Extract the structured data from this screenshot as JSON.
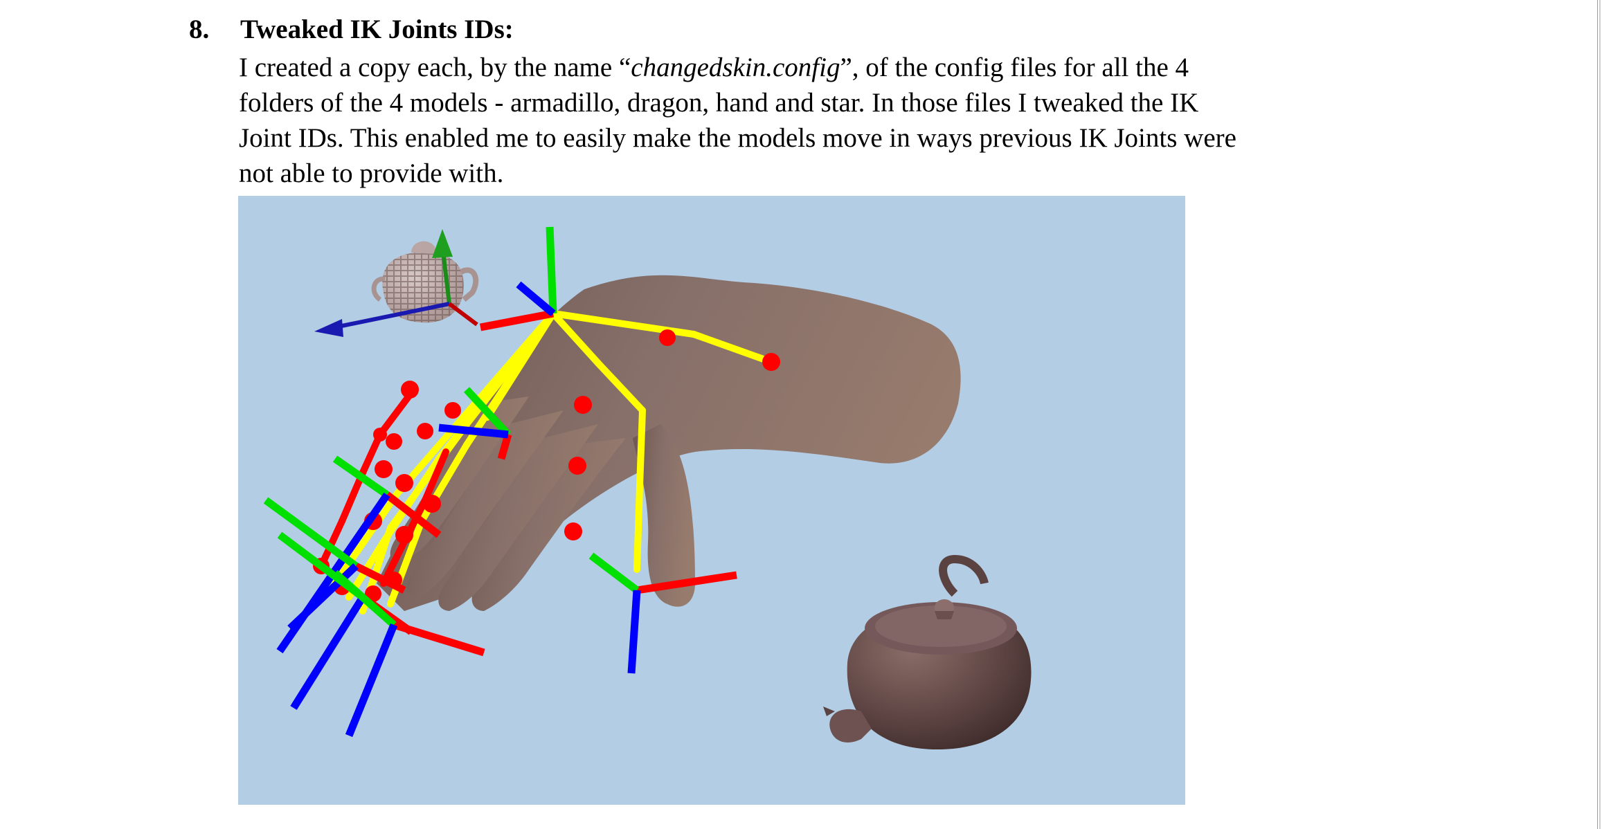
{
  "section": {
    "number": "8.",
    "title": "Tweaked IK Joints IDs:"
  },
  "paragraph": {
    "line1_pre": "I created a copy each, by the name “",
    "line1_italic": "changedskin.config",
    "line1_post": "”, of the config files for all the 4",
    "line2": "folders of the 4 models - armadillo, dragon, hand and star. In those files I tweaked the IK",
    "line3": "Joint IDs. This enabled me to easily make the models move in ways previous IK Joints were",
    "line4": "not able to provide with."
  },
  "figure": {
    "background_color": "#b3cde5",
    "skin_color": "#8a7066",
    "teapot_color": "#6e5350",
    "bone_color": "#ffff00",
    "joint_color": "#ff0000",
    "axis_colors": {
      "x": "#ff0000",
      "y": "#00ee00",
      "z": "#0000ff"
    },
    "objects": [
      "hand-model",
      "ik-skeleton",
      "wireframe-teapot",
      "solid-teapot",
      "transform-gizmo"
    ]
  }
}
